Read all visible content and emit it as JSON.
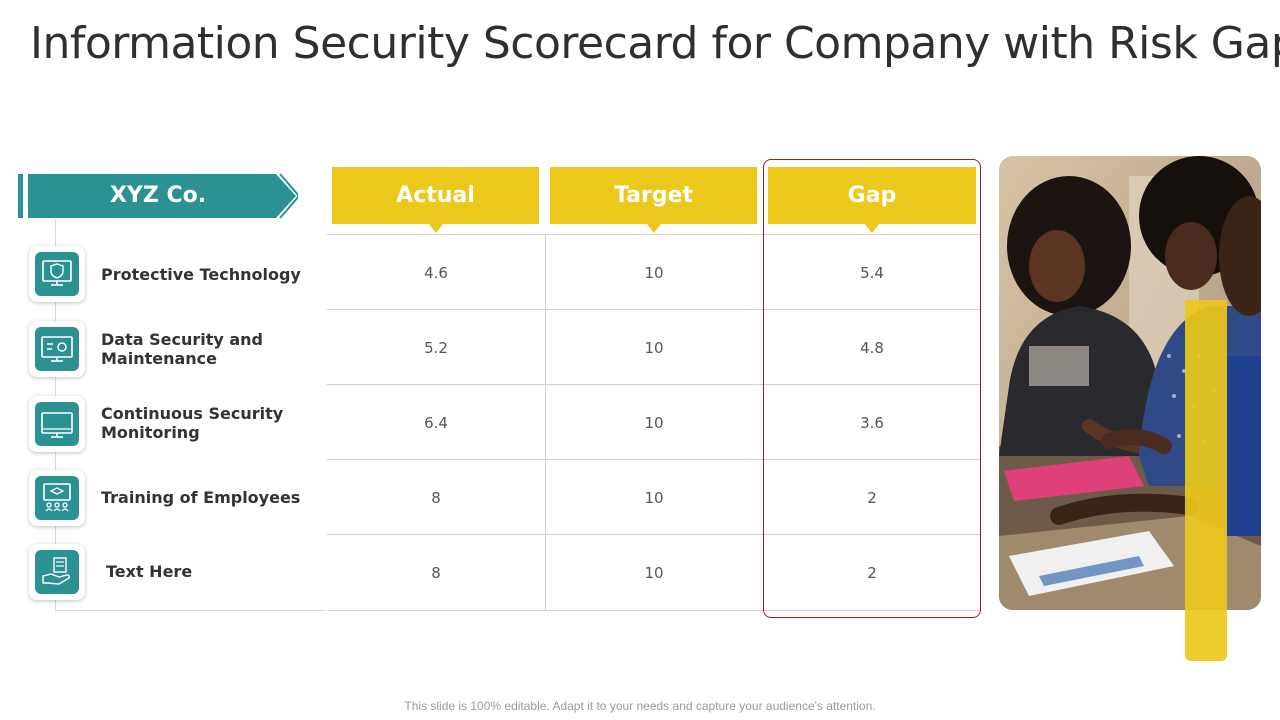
{
  "title": "Information Security Scorecard for Company with Risk Gap",
  "company": "XYZ Co.",
  "columns": {
    "actual": "Actual",
    "target": "Target",
    "gap": "Gap"
  },
  "rows": [
    {
      "label_line1": "Protective Technology",
      "label_line2": "",
      "icon": "shield-monitor-icon",
      "actual": "4.6",
      "target": "10",
      "gap": "5.4"
    },
    {
      "label_line1": "Data Security and",
      "label_line2": "Maintenance",
      "icon": "monitor-settings-icon",
      "actual": "5.2",
      "target": "10",
      "gap": "4.8"
    },
    {
      "label_line1": "Continuous Security",
      "label_line2": "Monitoring",
      "icon": "monitor-icon",
      "actual": "6.4",
      "target": "10",
      "gap": "3.6"
    },
    {
      "label_line1": "Training of Employees",
      "label_line2": "",
      "icon": "training-board-icon",
      "actual": "8",
      "target": "10",
      "gap": "2"
    },
    {
      "label_line1": "Text Here",
      "label_line2": "",
      "icon": "hand-documents-icon",
      "actual": "8",
      "target": "10",
      "gap": "2"
    }
  ],
  "footer": "This slide is 100% editable. Adapt it to your needs and capture your audience's attention.",
  "colors": {
    "teal": "#2c9193",
    "yellow": "#ecc81b",
    "gap_border": "#a01c1c"
  }
}
